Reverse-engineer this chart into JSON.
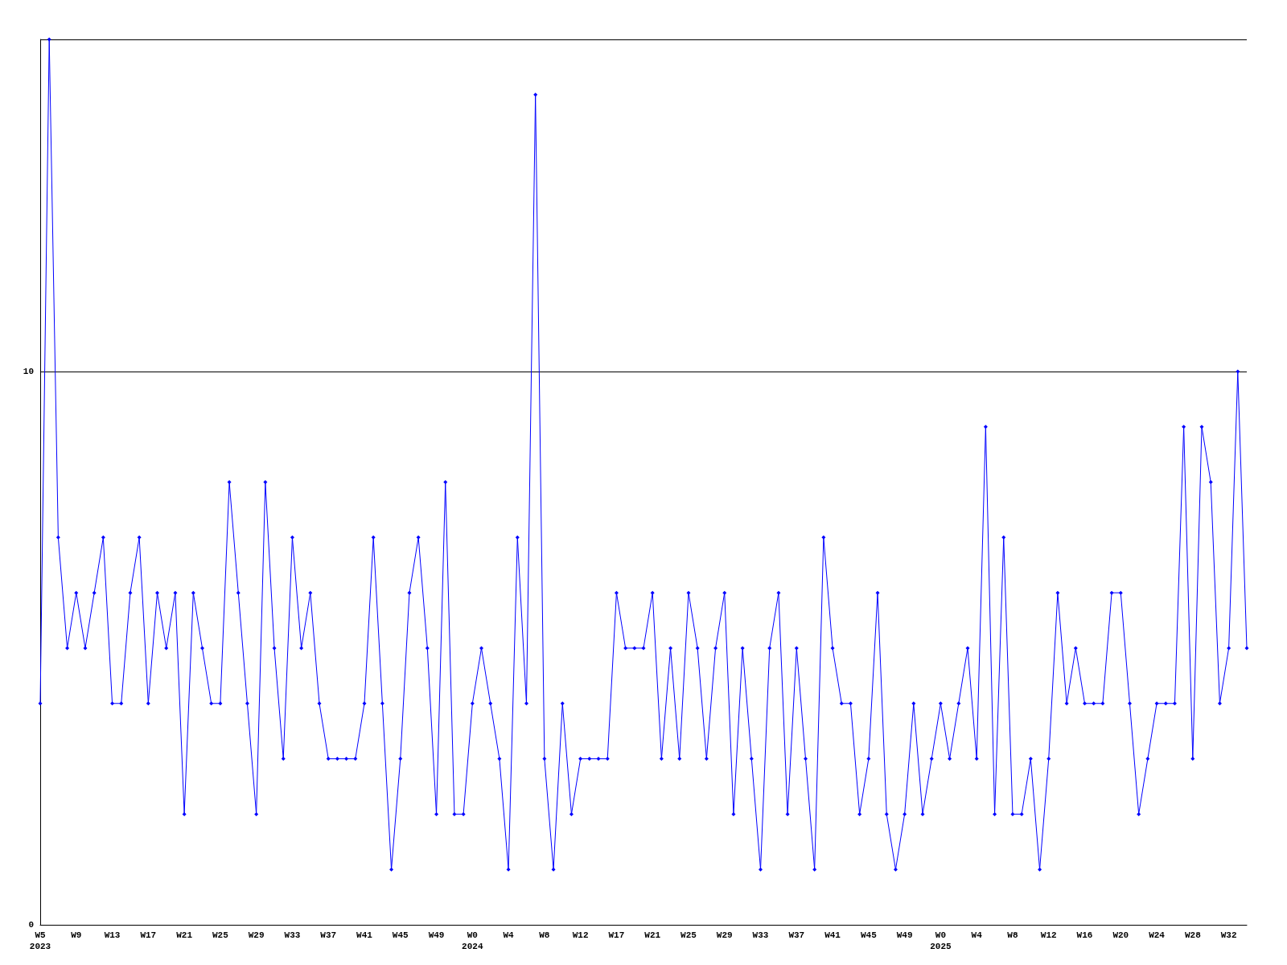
{
  "chart_data": {
    "type": "line",
    "categories": [
      "W5\n2023",
      null,
      null,
      null,
      "W9",
      null,
      null,
      null,
      "W13",
      null,
      null,
      null,
      "W17",
      null,
      null,
      null,
      "W21",
      null,
      null,
      null,
      "W25",
      null,
      null,
      null,
      "W29",
      null,
      null,
      null,
      "W33",
      null,
      null,
      null,
      "W37",
      null,
      null,
      null,
      "W41",
      null,
      null,
      null,
      "W45",
      null,
      null,
      null,
      "W49",
      null,
      null,
      null,
      "W0\n2024",
      null,
      null,
      null,
      "W4",
      null,
      null,
      null,
      "W8",
      null,
      null,
      null,
      "W12",
      null,
      null,
      null,
      "W17",
      null,
      null,
      null,
      "W21",
      null,
      null,
      null,
      "W25",
      null,
      null,
      null,
      "W29",
      null,
      null,
      null,
      "W33",
      null,
      null,
      null,
      "W37",
      null,
      null,
      null,
      "W41",
      null,
      null,
      null,
      "W45",
      null,
      null,
      null,
      "W49",
      null,
      null,
      null,
      "W0\n2025",
      null,
      null,
      null,
      "W4",
      null,
      null,
      null,
      "W8",
      null,
      null,
      null,
      "W12",
      null,
      null,
      null,
      "W16",
      null,
      null,
      null,
      "W20",
      null,
      null,
      null,
      "W24",
      null,
      null,
      null,
      "W28",
      null,
      null,
      null,
      "W32",
      null,
      null
    ],
    "series": [
      {
        "color": "#0000ff",
        "values": [
          4,
          16,
          7,
          5,
          6,
          5,
          6,
          7,
          4,
          4,
          6,
          7,
          4,
          6,
          5,
          6,
          2,
          6,
          5,
          4,
          4,
          8,
          6,
          4,
          2,
          8,
          5,
          3,
          7,
          5,
          6,
          4,
          3,
          3,
          3,
          3,
          4,
          7,
          4,
          1,
          3,
          6,
          7,
          5,
          2,
          8,
          2,
          2,
          4,
          5,
          4,
          3,
          1,
          7,
          4,
          15,
          3,
          1,
          4,
          2,
          3,
          3,
          3,
          3,
          6,
          5,
          5,
          5,
          6,
          3,
          5,
          3,
          6,
          5,
          3,
          5,
          6,
          2,
          5,
          3,
          1,
          5,
          6,
          2,
          5,
          3,
          1,
          7,
          5,
          4,
          4,
          2,
          3,
          6,
          2,
          1,
          2,
          4,
          2,
          3,
          4,
          3,
          4,
          5,
          3,
          9,
          2,
          7,
          2,
          2,
          3,
          1,
          3,
          6,
          4,
          5,
          4,
          4,
          4,
          6,
          6,
          4,
          2,
          3,
          4,
          4,
          4,
          9,
          3,
          9,
          8,
          4,
          5,
          10,
          5
        ]
      }
    ],
    "ylim": [
      0,
      16
    ],
    "yticks": [
      0,
      10
    ],
    "grid": "y",
    "marker": "diamond",
    "line_style": "solid"
  }
}
